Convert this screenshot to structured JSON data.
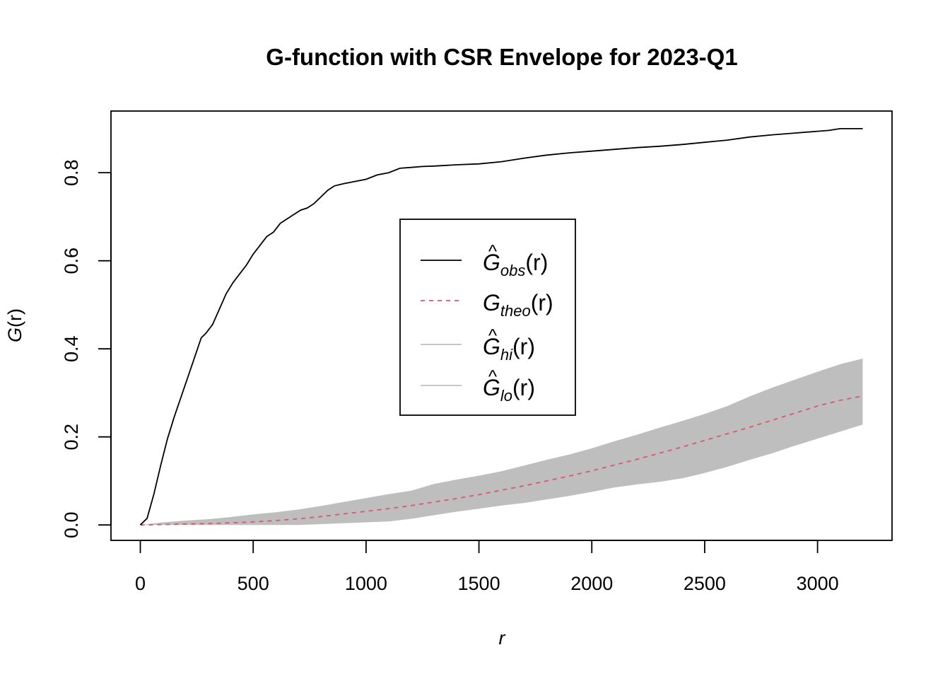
{
  "chart_data": {
    "type": "line",
    "title": "G-function with CSR Envelope for 2023-Q1",
    "xlabel": "r",
    "ylabel": "G(r)",
    "xlim": [
      -130,
      3330
    ],
    "ylim": [
      -0.035,
      0.94
    ],
    "x_ticks": [
      0,
      500,
      1000,
      1500,
      2000,
      2500,
      3000
    ],
    "x_tick_labels": [
      "0",
      "500",
      "1000",
      "1500",
      "2000",
      "2500",
      "3000"
    ],
    "y_ticks": [
      0.0,
      0.2,
      0.4,
      0.6,
      0.8
    ],
    "y_tick_labels": [
      "0.0",
      "0.2",
      "0.4",
      "0.6",
      "0.8"
    ],
    "legend_position": "center",
    "series": [
      {
        "name": "G_obs(r)",
        "style": "solid",
        "color": "#000000",
        "x": [
          0,
          30,
          60,
          90,
          120,
          150,
          180,
          210,
          240,
          270,
          290,
          320,
          350,
          380,
          410,
          440,
          470,
          500,
          530,
          560,
          590,
          620,
          650,
          680,
          710,
          740,
          770,
          800,
          830,
          860,
          900,
          950,
          1000,
          1050,
          1100,
          1150,
          1200,
          1250,
          1300,
          1400,
          1500,
          1600,
          1700,
          1800,
          1900,
          2000,
          2100,
          2200,
          2300,
          2400,
          2500,
          2600,
          2700,
          2800,
          2900,
          3000,
          3050,
          3100,
          3200
        ],
        "y": [
          0.0,
          0.015,
          0.07,
          0.135,
          0.195,
          0.245,
          0.29,
          0.335,
          0.38,
          0.425,
          0.435,
          0.455,
          0.49,
          0.525,
          0.55,
          0.57,
          0.59,
          0.615,
          0.635,
          0.655,
          0.665,
          0.685,
          0.695,
          0.705,
          0.715,
          0.72,
          0.73,
          0.745,
          0.76,
          0.77,
          0.775,
          0.78,
          0.785,
          0.795,
          0.8,
          0.81,
          0.812,
          0.814,
          0.815,
          0.818,
          0.82,
          0.825,
          0.833,
          0.84,
          0.845,
          0.849,
          0.853,
          0.857,
          0.86,
          0.864,
          0.869,
          0.874,
          0.881,
          0.886,
          0.89,
          0.894,
          0.896,
          0.9,
          0.9
        ]
      },
      {
        "name": "G_theo(r)",
        "style": "dashed",
        "color": "#DF536B",
        "x": [
          0,
          100,
          200,
          300,
          400,
          500,
          600,
          700,
          800,
          900,
          1000,
          1100,
          1200,
          1300,
          1400,
          1500,
          1600,
          1700,
          1800,
          1900,
          2000,
          2100,
          2200,
          2300,
          2400,
          2500,
          2600,
          2700,
          2800,
          2900,
          3000,
          3100,
          3200
        ],
        "y": [
          0.0,
          0.001,
          0.002,
          0.003,
          0.005,
          0.007,
          0.01,
          0.014,
          0.019,
          0.025,
          0.031,
          0.037,
          0.044,
          0.052,
          0.06,
          0.069,
          0.079,
          0.089,
          0.1,
          0.111,
          0.123,
          0.136,
          0.149,
          0.163,
          0.177,
          0.192,
          0.207,
          0.222,
          0.238,
          0.254,
          0.27,
          0.283,
          0.293
        ]
      },
      {
        "name": "G_hi(r)",
        "style": "band",
        "color": "#BEBEBE",
        "x": [
          0,
          100,
          200,
          300,
          400,
          500,
          600,
          700,
          800,
          900,
          1000,
          1100,
          1200,
          1300,
          1400,
          1500,
          1600,
          1700,
          1800,
          1900,
          2000,
          2100,
          2200,
          2300,
          2400,
          2500,
          2600,
          2700,
          2800,
          2900,
          3000,
          3100,
          3200
        ],
        "y": [
          0.0,
          0.006,
          0.01,
          0.013,
          0.018,
          0.024,
          0.029,
          0.035,
          0.043,
          0.052,
          0.061,
          0.07,
          0.078,
          0.093,
          0.103,
          0.112,
          0.122,
          0.135,
          0.148,
          0.16,
          0.174,
          0.19,
          0.205,
          0.221,
          0.236,
          0.252,
          0.27,
          0.292,
          0.312,
          0.33,
          0.348,
          0.365,
          0.378
        ]
      },
      {
        "name": "G_lo(r)",
        "style": "band",
        "color": "#BEBEBE",
        "x": [
          0,
          100,
          200,
          300,
          400,
          500,
          600,
          700,
          800,
          900,
          1000,
          1100,
          1200,
          1300,
          1400,
          1500,
          1600,
          1700,
          1800,
          1900,
          2000,
          2100,
          2200,
          2300,
          2400,
          2500,
          2600,
          2700,
          2800,
          2900,
          3000,
          3100,
          3200
        ],
        "y": [
          0.0,
          0.0,
          0.0,
          0.0,
          0.0,
          0.0,
          0.0,
          0.0,
          0.002,
          0.004,
          0.006,
          0.008,
          0.014,
          0.022,
          0.03,
          0.037,
          0.044,
          0.05,
          0.058,
          0.066,
          0.075,
          0.085,
          0.092,
          0.098,
          0.106,
          0.118,
          0.132,
          0.148,
          0.163,
          0.18,
          0.196,
          0.212,
          0.228
        ]
      }
    ],
    "legend": [
      {
        "hat": "^",
        "base": "G",
        "sub": "obs",
        "tail": "(r)",
        "color": "#000000",
        "style": "solid"
      },
      {
        "hat": "",
        "base": "G",
        "sub": "theo",
        "tail": "(r)",
        "color": "#DF536B",
        "style": "dashed"
      },
      {
        "hat": "^",
        "base": "G",
        "sub": "hi",
        "tail": "(r)",
        "color": "#BEBEBE",
        "style": "band"
      },
      {
        "hat": "^",
        "base": "G",
        "sub": "lo",
        "tail": "(r)",
        "color": "#BEBEBE",
        "style": "band"
      }
    ],
    "ylabel_parts": {
      "base": "G",
      "tail": "(r)"
    }
  }
}
